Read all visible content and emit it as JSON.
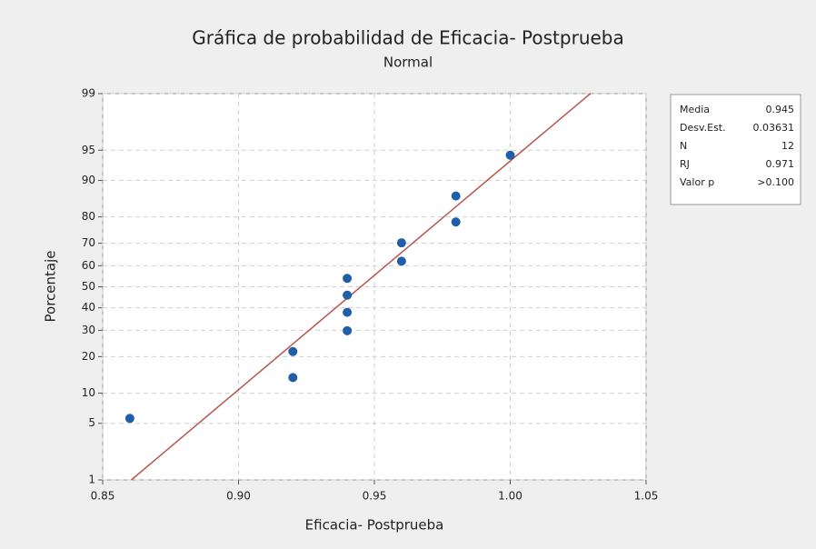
{
  "chart_data": {
    "type": "probability",
    "title": "Gráfica de probabilidad de Eficacia- Postprueba",
    "subtitle": "Normal",
    "xlabel": "Eficacia- Postprueba",
    "ylabel": "Porcentaje",
    "scale": "normal",
    "x": [
      0.86,
      0.92,
      0.92,
      0.94,
      0.94,
      0.94,
      0.94,
      0.96,
      0.96,
      0.98,
      0.98,
      1.0
    ],
    "values": [
      5.645,
      13.71,
      21.77,
      29.84,
      37.9,
      45.97,
      54.03,
      62.1,
      70.16,
      78.23,
      86.29,
      94.35
    ],
    "color": "#1f5ea8",
    "line_color": "#b9564e",
    "xlim": [
      0.85,
      1.05
    ],
    "xticks": [
      0.85,
      {
        "value": 0.9,
        "label": "0.90"
      },
      0.95,
      {
        "value": 1.0,
        "label": "1.00"
      },
      1.05
    ],
    "ylim": [
      1,
      99
    ],
    "yticks": [
      1,
      5,
      10,
      20,
      30,
      40,
      50,
      60,
      70,
      80,
      90,
      95,
      99
    ],
    "grid": true,
    "stats": [
      {
        "label": "Media",
        "value": 0.945
      },
      {
        "label": "Desv.Est.",
        "value": 0.03631
      },
      {
        "label": "N",
        "value": 12
      },
      {
        "label": "RJ",
        "value": 0.971
      },
      {
        "label": "Valor p",
        "value": ">0.100"
      }
    ]
  }
}
